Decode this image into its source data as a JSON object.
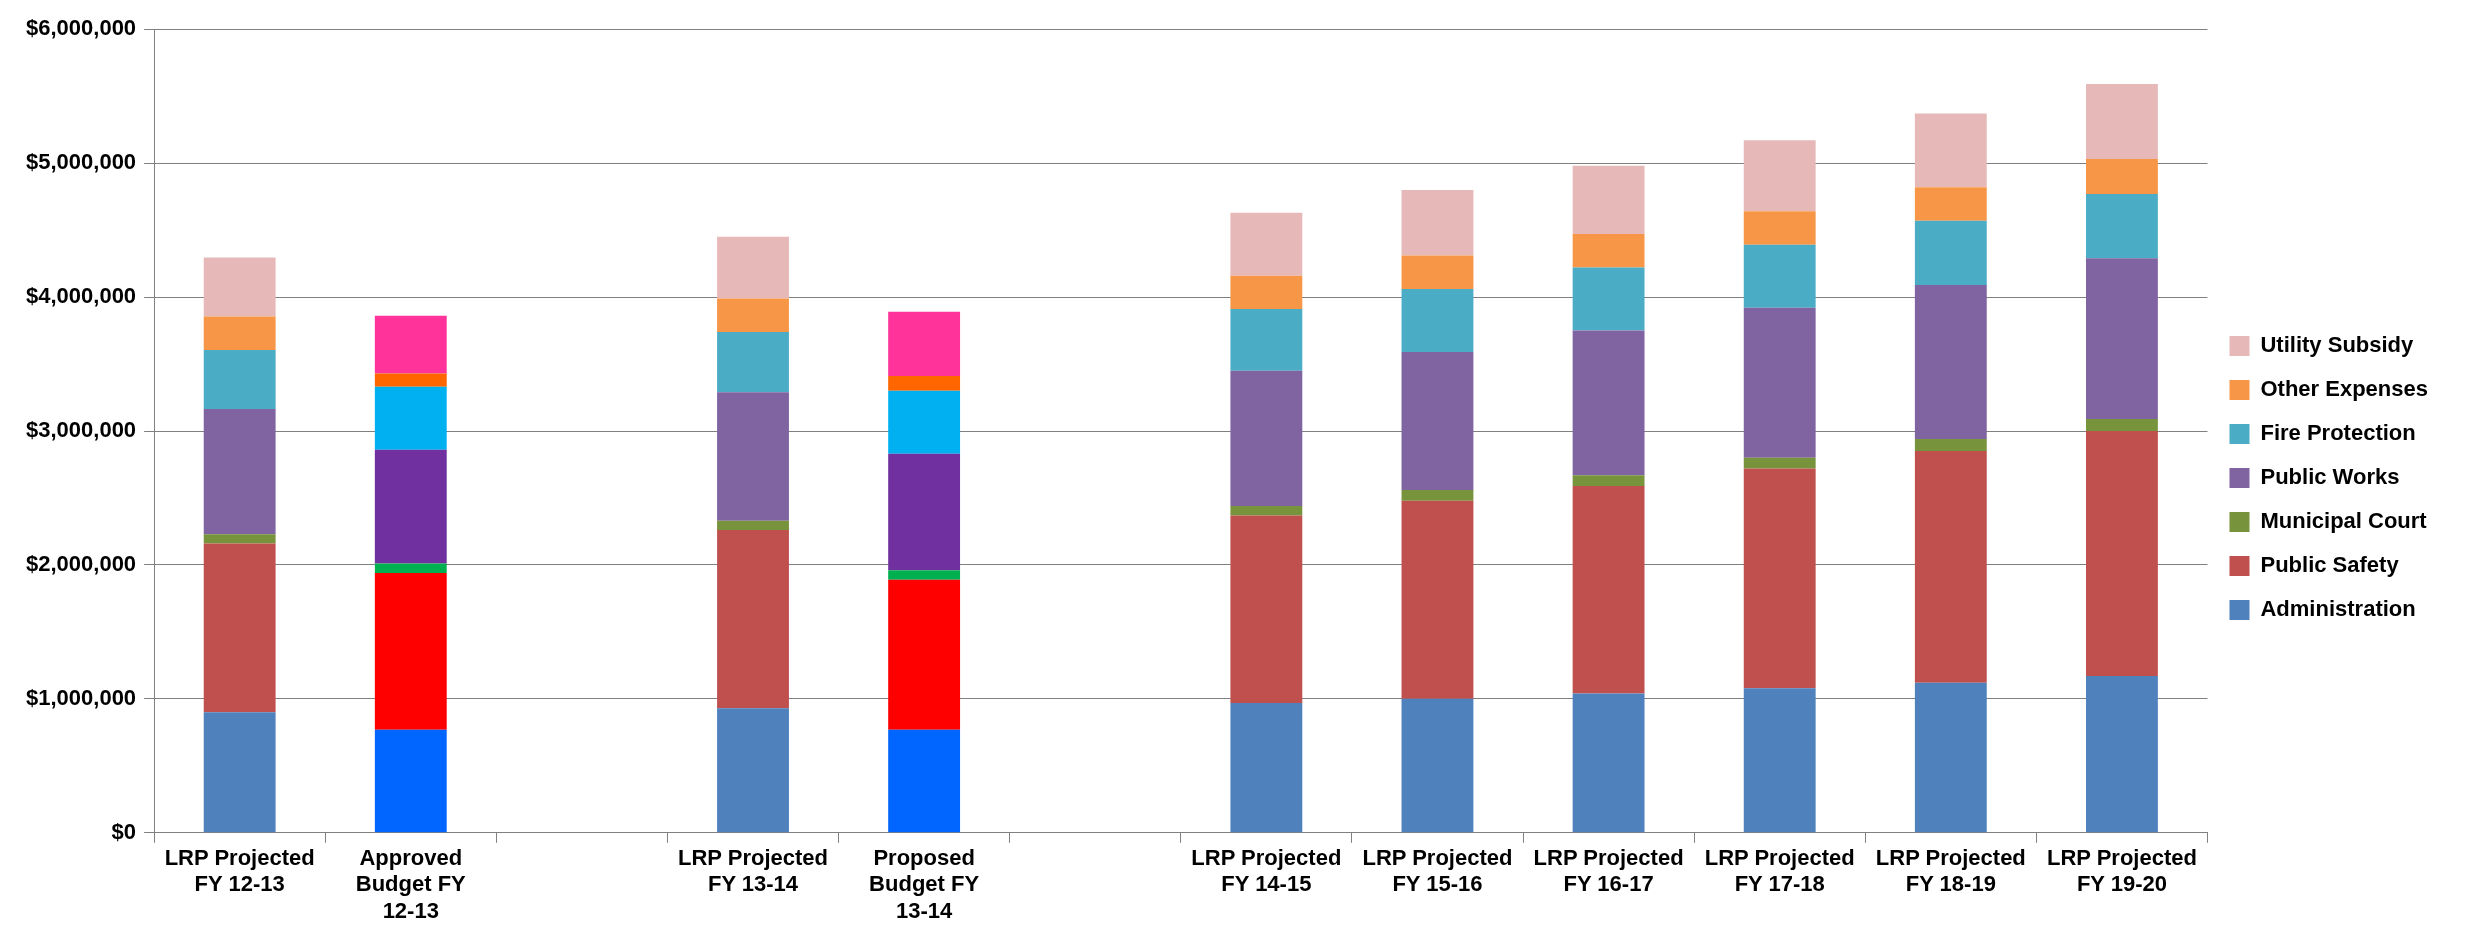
{
  "chart_data": {
    "type": "bar",
    "stacked": true,
    "legend": "right",
    "grid": "y",
    "categories": [
      "LRP Projected FY 12-13",
      "Approved Budget FY 12-13",
      null,
      "LRP Projected FY 13-14",
      "Proposed Budget FY 13-14",
      null,
      "LRP Projected FY 14-15",
      "LRP Projected FY 15-16",
      "LRP Projected FY 16-17",
      "LRP Projected FY 17-18",
      "LRP Projected FY 18-19",
      "LRP Projected FY 19-20"
    ],
    "ylim": [
      0,
      6000000
    ],
    "yticks": [
      {
        "value": 0,
        "label": "$0"
      },
      {
        "value": 1000000,
        "label": "$1,000,000"
      },
      {
        "value": 2000000,
        "label": "$2,000,000"
      },
      {
        "value": 3000000,
        "label": "$3,000,000"
      },
      {
        "value": 4000000,
        "label": "$4,000,000"
      },
      {
        "value": 5000000,
        "label": "$5,000,000"
      },
      {
        "value": 6000000,
        "label": "$6,000,000"
      }
    ],
    "series": [
      {
        "name": "Administration",
        "color": "#4f81bd",
        "colors": [
          "#4f81bd",
          "#0066ff",
          "#4f81bd",
          "#4f81bd",
          "#0066ff",
          "#4f81bd",
          "#4f81bd",
          "#4f81bd",
          "#4f81bd",
          "#4f81bd",
          "#4f81bd",
          "#4f81bd"
        ],
        "values": [
          900000,
          770000,
          null,
          930000,
          770000,
          null,
          970000,
          1000000,
          1040000,
          1080000,
          1120000,
          1170000
        ]
      },
      {
        "name": "Public Safety",
        "color": "#c0504d",
        "colors": [
          "#c0504d",
          "#ff0000",
          "#c0504d",
          "#c0504d",
          "#ff0000",
          "#c0504d",
          "#c0504d",
          "#c0504d",
          "#c0504d",
          "#c0504d",
          "#c0504d",
          "#c0504d"
        ],
        "values": [
          1260000,
          1170000,
          null,
          1330000,
          1120000,
          null,
          1400000,
          1480000,
          1550000,
          1640000,
          1730000,
          1830000
        ]
      },
      {
        "name": "Municipal Court",
        "color": "#77933c",
        "colors": [
          "#77933c",
          "#00b050",
          "#77933c",
          "#77933c",
          "#00b050",
          "#77933c",
          "#77933c",
          "#77933c",
          "#77933c",
          "#77933c",
          "#77933c",
          "#77933c"
        ],
        "values": [
          70000,
          70000,
          null,
          70000,
          70000,
          null,
          70000,
          80000,
          80000,
          80000,
          90000,
          90000
        ]
      },
      {
        "name": "Public Works",
        "color": "#8064a2",
        "colors": [
          "#8064a2",
          "#7030a0",
          "#8064a2",
          "#8064a2",
          "#7030a0",
          "#8064a2",
          "#8064a2",
          "#8064a2",
          "#8064a2",
          "#8064a2",
          "#8064a2",
          "#8064a2"
        ],
        "values": [
          935000,
          850000,
          null,
          960000,
          870000,
          null,
          1010000,
          1030000,
          1080000,
          1120000,
          1150000,
          1200000
        ]
      },
      {
        "name": "Fire Protection",
        "color": "#4bacc6",
        "colors": [
          "#4bacc6",
          "#00b0f0",
          "#4bacc6",
          "#4bacc6",
          "#00b0f0",
          "#4bacc6",
          "#4bacc6",
          "#4bacc6",
          "#4bacc6",
          "#4bacc6",
          "#4bacc6",
          "#4bacc6"
        ],
        "values": [
          440000,
          470000,
          null,
          450000,
          470000,
          null,
          460000,
          470000,
          470000,
          470000,
          480000,
          480000
        ]
      },
      {
        "name": "Other Expenses",
        "color": "#f79646",
        "colors": [
          "#f79646",
          "#ff6600",
          "#f79646",
          "#f79646",
          "#ff6600",
          "#f79646",
          "#f79646",
          "#f79646",
          "#f79646",
          "#f79646",
          "#f79646",
          "#f79646"
        ],
        "values": [
          250000,
          100000,
          null,
          250000,
          110000,
          null,
          250000,
          250000,
          250000,
          250000,
          250000,
          260000
        ]
      },
      {
        "name": "Utility Subsidy",
        "color": "#e6b9b8",
        "colors": [
          "#e6b9b8",
          "#ff3399",
          "#e6b9b8",
          "#e6b9b8",
          "#ff3399",
          "#e6b9b8",
          "#e6b9b8",
          "#e6b9b8",
          "#e6b9b8",
          "#e6b9b8",
          "#e6b9b8",
          "#e6b9b8"
        ],
        "values": [
          440000,
          430000,
          null,
          460000,
          480000,
          null,
          470000,
          490000,
          510000,
          530000,
          550000,
          560000
        ]
      }
    ]
  }
}
